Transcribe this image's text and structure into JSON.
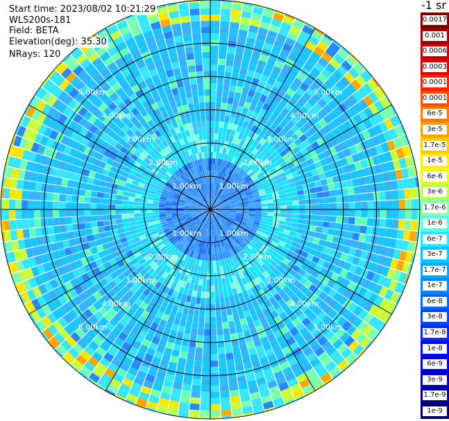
{
  "info": {
    "start_time": "Start time: 2023/08/02 10:21:29",
    "instrument": "WLS200s-181",
    "field": "Field: BETA",
    "elevation": "Elevation(deg): 35.30",
    "nrays": "NRays: 120"
  },
  "ppi": {
    "nrays": 120,
    "range_rings": [
      {
        "label": "1.00km",
        "km": 1
      },
      {
        "label": "2.00km",
        "km": 2
      },
      {
        "label": "3.00km",
        "km": 3
      },
      {
        "label": "4.00km",
        "km": 4
      },
      {
        "label": "5.00km",
        "km": 5
      }
    ],
    "max_range_km": 6.3,
    "spoke_step_deg": 30
  },
  "colorbar": {
    "title": "-1 sr",
    "ticks": [
      "0.0017",
      "0.001",
      "0.0006",
      "0.0003",
      "0.00017",
      "0.0001",
      "6e-5",
      "3e-5",
      "1.7e-5",
      "1e-5",
      "6e-6",
      "3e-6",
      "1.7e-6",
      "1e-6",
      "6e-7",
      "3e-7",
      "1.7e-7",
      "1e-7",
      "6e-8",
      "3e-8",
      "1.7e-8",
      "1e-8",
      "6e-9",
      "3e-9",
      "1.7e-9",
      "1e-9"
    ],
    "colors": [
      "#7a0000",
      "#a00000",
      "#c80000",
      "#e00000",
      "#ff2000",
      "#ff4a00",
      "#ff7800",
      "#ffa000",
      "#ffc800",
      "#ffee00",
      "#e6ff1a",
      "#b8ff46",
      "#8affb0",
      "#50ffe8",
      "#20e8ff",
      "#00c8ff",
      "#00a8ff",
      "#0088ff",
      "#0068ff",
      "#0048ff",
      "#0028ff",
      "#0008ff",
      "#0000e0",
      "#0000b8",
      "#000090",
      "#000068"
    ]
  }
}
